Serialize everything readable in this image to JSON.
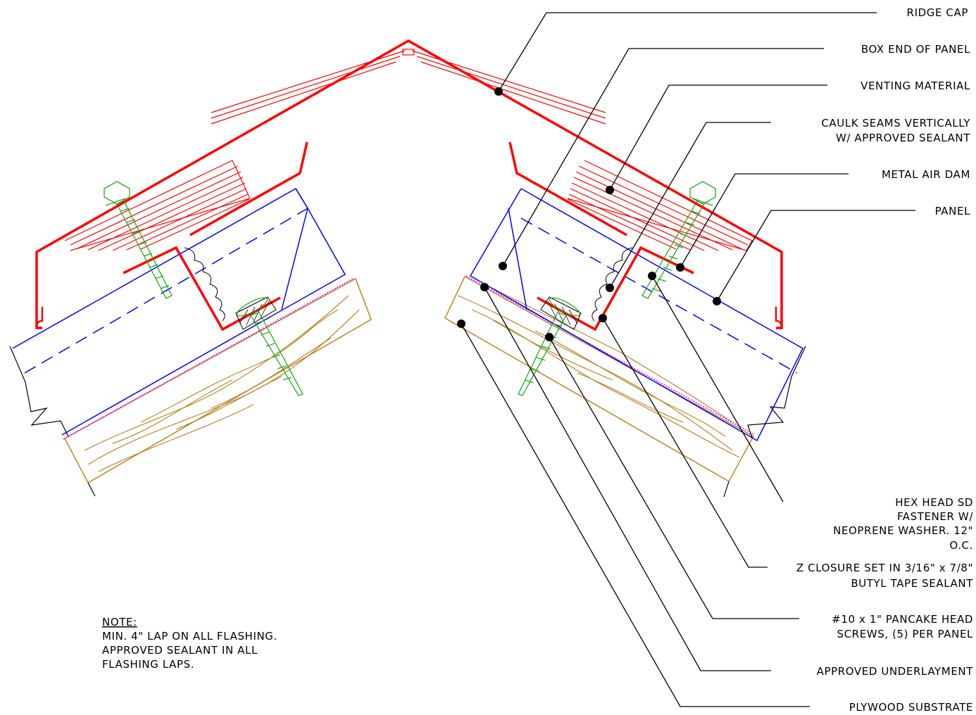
{
  "diagram": {
    "labels": {
      "ridge_cap": "RIDGE CAP",
      "box_end": "BOX END OF PANEL",
      "venting": "VENTING MATERIAL",
      "caulk_1": "CAULK SEAMS VERTICALLY",
      "caulk_2": "W/ APPROVED SEALANT",
      "air_dam": "METAL AIR DAM",
      "panel": "PANEL",
      "hex_1": "HEX HEAD SD",
      "hex_2": "FASTENER W/",
      "hex_3": "NEOPRENE WASHER. 12\"",
      "hex_4": "O.C.",
      "zclosure_1": "Z CLOSURE SET IN 3/16\" x 7/8\"",
      "zclosure_2": "BUTYL TAPE SEALANT",
      "pancake_1": "#10 x 1\" PANCAKE HEAD",
      "pancake_2": "SCREWS, (5) PER PANEL",
      "underlayment": "APPROVED UNDERLAYMENT",
      "plywood": "PLYWOOD SUBSTRATE"
    },
    "note": {
      "title": "NOTE:",
      "line1": "MIN. 4\" LAP ON ALL FLASHING.",
      "line2": "APPROVED SEALANT IN ALL",
      "line3": "FLASHING LAPS."
    },
    "colors": {
      "ridge_cap": "#ff0000",
      "panel": "#0000ff",
      "plywood": "#b8862b",
      "underlayment": "#ff00ff",
      "fasteners": "#22aa22",
      "leaders": "#000000"
    }
  }
}
